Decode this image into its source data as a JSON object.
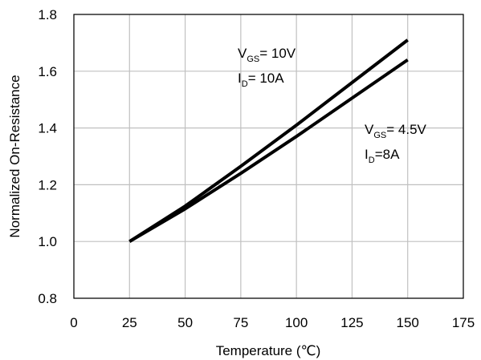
{
  "chart_data": {
    "type": "line",
    "xlabel": "Temperature (℃)",
    "ylabel": "Normalized On-Resistance",
    "xlim": [
      0,
      175
    ],
    "ylim": [
      0.8,
      1.8
    ],
    "xticks": [
      "0",
      "25",
      "50",
      "75",
      "100",
      "125",
      "150",
      "175"
    ],
    "yticks": [
      "0.8",
      "1.0",
      "1.2",
      "1.4",
      "1.6",
      "1.8"
    ],
    "grid": true,
    "series": [
      {
        "x": [
          25,
          50,
          75,
          100,
          125,
          150
        ],
        "values": [
          1.0,
          1.125,
          1.265,
          1.41,
          1.56,
          1.71
        ]
      },
      {
        "x": [
          25,
          50,
          75,
          100,
          125,
          150
        ],
        "values": [
          1.0,
          1.115,
          1.24,
          1.37,
          1.505,
          1.64
        ]
      }
    ],
    "annotations": [
      {
        "lines": [
          {
            "main": "V",
            "sub": "GS",
            "rest": "= 10V"
          },
          {
            "main": "I",
            "sub": "D",
            "rest": "= 10A"
          }
        ]
      },
      {
        "lines": [
          {
            "main": "V",
            "sub": "GS",
            "rest": "= 4.5V"
          },
          {
            "main": "I",
            "sub": "D",
            "rest": "=8A"
          }
        ]
      }
    ]
  }
}
